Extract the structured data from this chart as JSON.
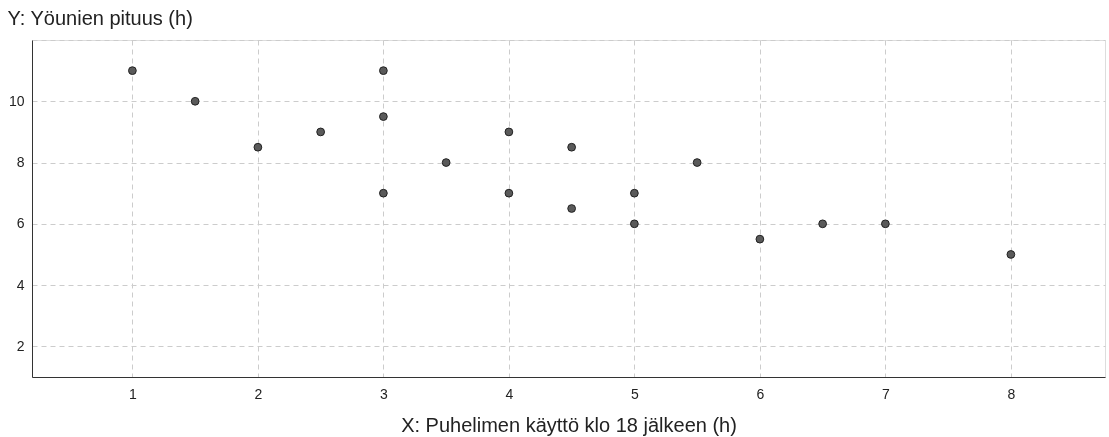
{
  "chart_data": {
    "type": "scatter",
    "xlabel": "X:  Puhelimen käyttö klo 18 jälkeen (h)",
    "ylabel": "Y:  Yöunien pituus (h)",
    "x": [
      1,
      1.5,
      2,
      2.5,
      3,
      3,
      3,
      3.5,
      4,
      4,
      4.5,
      4.5,
      5,
      5,
      5.5,
      6,
      6.5,
      7,
      8
    ],
    "values": [
      11,
      10,
      8.5,
      9,
      11,
      9.5,
      7,
      8,
      9,
      7,
      8.5,
      6.5,
      7,
      6,
      8,
      5.5,
      6,
      6,
      5
    ],
    "color": "#5a5a5a",
    "marker": "circle",
    "xlim": [
      0.2,
      8.75
    ],
    "ylim": [
      1,
      12
    ],
    "xticks": [
      1,
      2,
      3,
      4,
      5,
      6,
      7,
      8
    ],
    "yticks": [
      2,
      4,
      6,
      8,
      10,
      {
        "value": 12,
        "label": null
      }
    ],
    "grid": true
  }
}
